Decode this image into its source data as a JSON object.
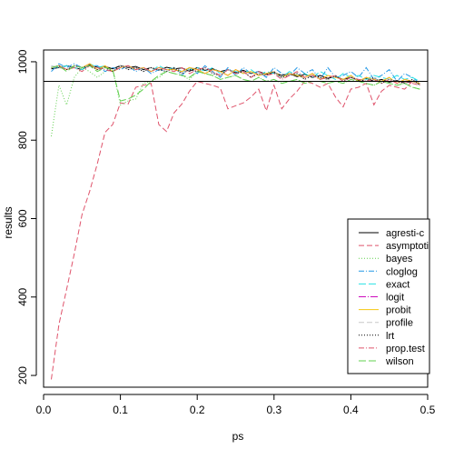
{
  "chart_data": {
    "type": "line",
    "xlabel": "ps",
    "ylabel": "results",
    "xlim": [
      0.0,
      0.5
    ],
    "ylim": [
      170,
      1030
    ],
    "xticks": [
      0.0,
      0.1,
      0.2,
      0.3,
      0.4,
      0.5
    ],
    "xtick_labels": [
      "0.0",
      "0.1",
      "0.2",
      "0.3",
      "0.4",
      "0.5"
    ],
    "yticks": [
      200,
      400,
      600,
      800,
      1000
    ],
    "ytick_labels": [
      "200",
      "400",
      "600",
      "800",
      "1000"
    ],
    "reference_line": 950,
    "legend_position": "bottom-right",
    "x": [
      0.01,
      0.02,
      0.03,
      0.04,
      0.05,
      0.06,
      0.07,
      0.08,
      0.09,
      0.1,
      0.11,
      0.12,
      0.13,
      0.14,
      0.15,
      0.16,
      0.17,
      0.18,
      0.19,
      0.2,
      0.21,
      0.22,
      0.23,
      0.24,
      0.25,
      0.26,
      0.27,
      0.28,
      0.29,
      0.3,
      0.31,
      0.32,
      0.33,
      0.34,
      0.35,
      0.36,
      0.37,
      0.38,
      0.39,
      0.4,
      0.41,
      0.42,
      0.43,
      0.44,
      0.45,
      0.46,
      0.47,
      0.48,
      0.49
    ],
    "series": [
      {
        "name": "agresti-c",
        "color": "#000000",
        "dash": "",
        "values": [
          982,
          985,
          990,
          985,
          980,
          992,
          986,
          988,
          982,
          990,
          985,
          988,
          980,
          985,
          978,
          986,
          982,
          984,
          976,
          985,
          978,
          982,
          975,
          980,
          972,
          978,
          970,
          975,
          968,
          972,
          965,
          970,
          962,
          968,
          960,
          965,
          958,
          962,
          955,
          960,
          952,
          958,
          950,
          955,
          948,
          952,
          946,
          950,
          944
        ]
      },
      {
        "name": "asymptotic",
        "color": "#DF536B",
        "dash": "6,3",
        "values": [
          190,
          330,
          420,
          510,
          610,
          670,
          740,
          820,
          840,
          895,
          892,
          935,
          940,
          945,
          840,
          822,
          870,
          892,
          925,
          950,
          945,
          940,
          933,
          880,
          888,
          895,
          910,
          930,
          875,
          940,
          880,
          905,
          925,
          950,
          945,
          935,
          945,
          910,
          885,
          930,
          935,
          945,
          890,
          925,
          940,
          935,
          930,
          950,
          945
        ]
      },
      {
        "name": "bayes",
        "color": "#61D04F",
        "dash": "1,2",
        "values": [
          810,
          940,
          890,
          960,
          985,
          975,
          960,
          975,
          980,
          890,
          900,
          905,
          945,
          950,
          960,
          975,
          970,
          965,
          955,
          975,
          970,
          965,
          955,
          960,
          965,
          955,
          950,
          960,
          950,
          955,
          945,
          950,
          955,
          945,
          950,
          950,
          945,
          950,
          945,
          955,
          950,
          945,
          940,
          950,
          945,
          940,
          945,
          935,
          930
        ]
      },
      {
        "name": "cloglog",
        "color": "#2297E6",
        "dash": "6,2,1,2",
        "values": [
          975,
          995,
          985,
          995,
          985,
          990,
          990,
          975,
          985,
          980,
          990,
          975,
          985,
          970,
          980,
          975,
          985,
          965,
          985,
          970,
          990,
          975,
          960,
          985,
          965,
          985,
          970,
          975,
          960,
          985,
          970,
          965,
          985,
          970,
          980,
          955,
          985,
          960,
          965,
          975,
          960,
          985,
          955,
          965,
          980,
          950,
          970,
          960,
          945
        ]
      },
      {
        "name": "exact",
        "color": "#28E2E5",
        "dash": "8,3",
        "values": [
          990,
          985,
          990,
          985,
          980,
          995,
          985,
          990,
          975,
          985,
          990,
          980,
          985,
          975,
          990,
          980,
          985,
          975,
          980,
          985,
          975,
          985,
          970,
          980,
          975,
          970,
          980,
          965,
          975,
          970,
          960,
          975,
          965,
          970,
          960,
          975,
          965,
          955,
          970,
          960,
          965,
          955,
          965,
          960,
          955,
          965,
          955,
          960,
          950
        ]
      },
      {
        "name": "logit",
        "color": "#CD0BBC",
        "dash": "8,2,1,2",
        "values": [
          985,
          990,
          980,
          990,
          985,
          995,
          980,
          990,
          975,
          985,
          990,
          980,
          985,
          975,
          985,
          980,
          980,
          975,
          985,
          980,
          970,
          980,
          975,
          965,
          980,
          970,
          975,
          965,
          970,
          975,
          960,
          970,
          965,
          960,
          970,
          955,
          965,
          960,
          955,
          965,
          950,
          960,
          955,
          950,
          960,
          945,
          955,
          950,
          945
        ]
      },
      {
        "name": "probit",
        "color": "#F5C710",
        "dash": "",
        "values": [
          985,
          990,
          980,
          990,
          985,
          995,
          980,
          990,
          975,
          985,
          990,
          980,
          985,
          975,
          985,
          980,
          980,
          975,
          985,
          980,
          970,
          980,
          975,
          965,
          980,
          970,
          975,
          965,
          970,
          975,
          960,
          970,
          965,
          960,
          970,
          955,
          965,
          960,
          955,
          965,
          950,
          960,
          955,
          950,
          960,
          945,
          955,
          950,
          945
        ]
      },
      {
        "name": "profile",
        "color": "#C8C8C8",
        "dash": "6,3",
        "values": [
          990,
          985,
          980,
          990,
          985,
          990,
          980,
          985,
          975,
          990,
          980,
          985,
          975,
          985,
          980,
          975,
          985,
          970,
          980,
          975,
          985,
          970,
          965,
          980,
          970,
          975,
          960,
          970,
          965,
          975,
          960,
          965,
          970,
          955,
          965,
          960,
          955,
          965,
          950,
          960,
          955,
          950,
          960,
          945,
          955,
          950,
          945,
          955,
          940
        ]
      },
      {
        "name": "lrt",
        "color": "#000000",
        "dash": "1,2",
        "values": [
          985,
          990,
          980,
          990,
          985,
          990,
          980,
          985,
          975,
          990,
          980,
          985,
          975,
          985,
          980,
          975,
          985,
          970,
          980,
          975,
          985,
          970,
          965,
          980,
          970,
          975,
          960,
          970,
          965,
          975,
          960,
          965,
          970,
          955,
          965,
          960,
          955,
          965,
          950,
          960,
          955,
          950,
          960,
          945,
          955,
          950,
          945,
          955,
          940
        ]
      },
      {
        "name": "prop.test",
        "color": "#DF536B",
        "dash": "6,2,1,2",
        "values": [
          985,
          990,
          980,
          985,
          975,
          990,
          985,
          980,
          975,
          985,
          990,
          980,
          985,
          975,
          985,
          980,
          975,
          985,
          970,
          980,
          985,
          975,
          965,
          980,
          970,
          975,
          960,
          975,
          965,
          970,
          955,
          965,
          975,
          960,
          965,
          955,
          960,
          965,
          950,
          960,
          955,
          950,
          955,
          945,
          955,
          945,
          950,
          945,
          940
        ]
      },
      {
        "name": "wilson",
        "color": "#61D04F",
        "dash": "8,3",
        "values": [
          985,
          990,
          975,
          990,
          985,
          990,
          975,
          985,
          980,
          900,
          905,
          915,
          930,
          950,
          965,
          975,
          970,
          965,
          960,
          975,
          970,
          965,
          955,
          960,
          965,
          955,
          950,
          960,
          950,
          955,
          945,
          950,
          955,
          945,
          950,
          950,
          945,
          950,
          945,
          955,
          950,
          945,
          940,
          950,
          945,
          940,
          945,
          935,
          930
        ]
      }
    ],
    "legend_labels": [
      "agresti-c",
      "asymptoti",
      "bayes",
      "cloglog",
      "exact",
      "logit",
      "probit",
      "profile",
      "lrt",
      "prop.test",
      "wilson"
    ]
  }
}
